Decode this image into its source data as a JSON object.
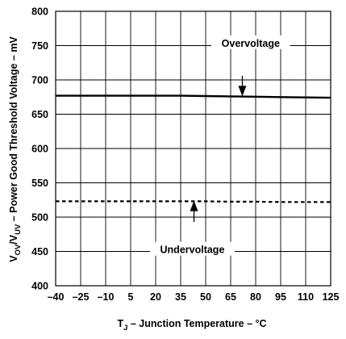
{
  "chart_data": {
    "type": "line",
    "xlabel": {
      "symbol": "T",
      "sub": "J",
      "rest": " – Junction Temperature – °C"
    },
    "ylabel": {
      "p1": "V",
      "s1": "OV",
      "p2": "/V",
      "s2": "UV",
      "p3": " – Power Good Threshold Voltage – mV"
    },
    "x_ticks": [
      "–40",
      "–25",
      "–10",
      "5",
      "20",
      "35",
      "50",
      "65",
      "80",
      "95",
      "110",
      "125"
    ],
    "x_tick_values": [
      -40,
      -25,
      -10,
      5,
      20,
      35,
      50,
      65,
      80,
      95,
      110,
      125
    ],
    "xlim": [
      -40,
      125
    ],
    "y_ticks": [
      "400",
      "450",
      "500",
      "550",
      "600",
      "650",
      "700",
      "750",
      "800"
    ],
    "y_tick_values": [
      400,
      450,
      500,
      550,
      600,
      650,
      700,
      750,
      800
    ],
    "ylim": [
      400,
      800
    ],
    "grid": true,
    "series": [
      {
        "name": "Overvoltage",
        "style": "solid",
        "x": [
          -40,
          -25,
          -10,
          5,
          20,
          35,
          50,
          65,
          80,
          95,
          110,
          125
        ],
        "y": [
          677,
          677,
          677,
          677,
          677,
          677,
          676.5,
          676,
          675.5,
          675,
          674.5,
          674
        ]
      },
      {
        "name": "Undervoltage",
        "style": "dashed",
        "x": [
          -40,
          -25,
          -10,
          5,
          20,
          35,
          50,
          65,
          80,
          95,
          110,
          125
        ],
        "y": [
          523,
          523,
          523,
          523,
          523,
          523,
          523,
          522.5,
          522.5,
          522,
          522,
          522
        ]
      }
    ],
    "annotations": [
      {
        "text": "Overvoltage",
        "label_at": [
          77,
          752
        ],
        "arrow_from": [
          72,
          706
        ],
        "arrow_to": [
          72,
          676
        ]
      },
      {
        "text": "Undervoltage",
        "label_at": [
          42,
          451
        ],
        "arrow_from": [
          43,
          493
        ],
        "arrow_to": [
          43,
          524
        ]
      }
    ]
  }
}
